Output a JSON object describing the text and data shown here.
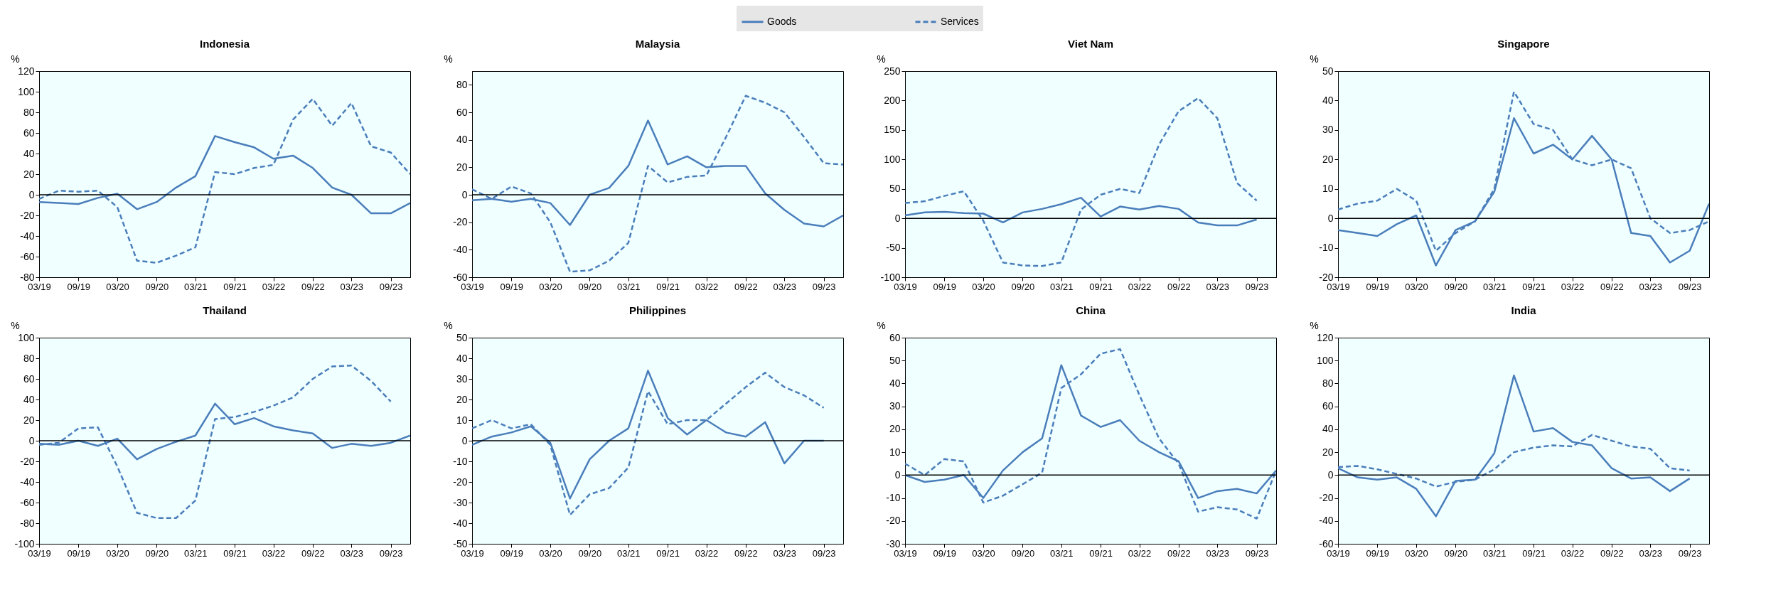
{
  "chart_data": [
    {
      "type": "line",
      "title": "Indonesia",
      "ylabel": "%",
      "legend": "top",
      "x": [
        "2019-03",
        "2019-06",
        "2019-09",
        "2019-12",
        "2020-03",
        "2020-06",
        "2020-09",
        "2020-12",
        "2021-03",
        "2021-06",
        "2021-09",
        "2021-12",
        "2022-03",
        "2022-06",
        "2022-09",
        "2022-12",
        "2023-03",
        "2023-06",
        "2023-09",
        "2023-12"
      ],
      "xlim": [
        "2019-03",
        "2023-12"
      ],
      "xticks": [
        {
          "value": "2019-03",
          "label": "03/19"
        },
        {
          "value": "2019-09",
          "label": "09/19"
        },
        {
          "value": "2020-03",
          "label": "03/20"
        },
        {
          "value": "2020-09",
          "label": "09/20"
        },
        {
          "value": "2021-03",
          "label": "03/21"
        },
        {
          "value": "2021-09",
          "label": "09/21"
        },
        {
          "value": "2022-03",
          "label": "03/22"
        },
        {
          "value": "2022-09",
          "label": "09/22"
        },
        {
          "value": "2023-03",
          "label": "03/23"
        },
        {
          "value": "2023-09",
          "label": "09/23"
        }
      ],
      "ylim": [
        -80,
        120
      ],
      "yticks": [
        -80,
        -60,
        -40,
        -20,
        0,
        20,
        40,
        60,
        80,
        100,
        120
      ],
      "ref_lines": [
        {
          "axis": "y",
          "value": 0,
          "color": "#000000"
        }
      ],
      "series": [
        {
          "name": "Goods",
          "color": "#4a7ebb",
          "line_style": "solid",
          "values": [
            -7,
            -8,
            -9,
            -3,
            1,
            -14,
            -7,
            7,
            18,
            57,
            51,
            46,
            35,
            38,
            26,
            7,
            0,
            -18,
            -18,
            -8
          ]
        },
        {
          "name": "Services",
          "color": "#4a7ebb",
          "line_style": "dashed",
          "values": [
            -4,
            4,
            3,
            4,
            -12,
            -64,
            -66,
            -59,
            -51,
            22,
            20,
            26,
            29,
            73,
            93,
            67,
            89,
            47,
            41,
            20
          ]
        }
      ]
    },
    {
      "type": "line",
      "title": "Malaysia",
      "ylabel": "%",
      "x": [
        "2019-03",
        "2019-06",
        "2019-09",
        "2019-12",
        "2020-03",
        "2020-06",
        "2020-09",
        "2020-12",
        "2021-03",
        "2021-06",
        "2021-09",
        "2021-12",
        "2022-03",
        "2022-06",
        "2022-09",
        "2022-12",
        "2023-03",
        "2023-06",
        "2023-09",
        "2023-12"
      ],
      "xlim": [
        "2019-03",
        "2023-12"
      ],
      "xticks": [
        {
          "value": "2019-03",
          "label": "03/19"
        },
        {
          "value": "2019-09",
          "label": "09/19"
        },
        {
          "value": "2020-03",
          "label": "03/20"
        },
        {
          "value": "2020-09",
          "label": "09/20"
        },
        {
          "value": "2021-03",
          "label": "03/21"
        },
        {
          "value": "2021-09",
          "label": "09/21"
        },
        {
          "value": "2022-03",
          "label": "03/22"
        },
        {
          "value": "2022-09",
          "label": "09/22"
        },
        {
          "value": "2023-03",
          "label": "03/23"
        },
        {
          "value": "2023-09",
          "label": "09/23"
        }
      ],
      "ylim": [
        -60,
        90
      ],
      "yticks": [
        -60,
        -40,
        -20,
        0,
        20,
        40,
        60,
        80
      ],
      "ref_lines": [
        {
          "axis": "y",
          "value": 0,
          "color": "#000000"
        }
      ],
      "series": [
        {
          "name": "Goods",
          "color": "#4a7ebb",
          "line_style": "solid",
          "values": [
            -4,
            -3,
            -5,
            -3,
            -6,
            -22,
            0,
            5,
            21,
            54,
            22,
            28,
            20,
            21,
            21,
            1,
            -11,
            -21,
            -23,
            -15
          ]
        },
        {
          "name": "Services",
          "color": "#4a7ebb",
          "line_style": "dashed",
          "values": [
            4,
            -3,
            6,
            1,
            -20,
            -56,
            -55,
            -48,
            -35,
            21,
            9,
            13,
            14,
            42,
            72,
            67,
            60,
            42,
            23,
            22
          ]
        }
      ]
    },
    {
      "type": "line",
      "title": "Viet Nam",
      "ylabel": "%",
      "x": [
        "2019-03",
        "2019-06",
        "2019-09",
        "2019-12",
        "2020-03",
        "2020-06",
        "2020-09",
        "2020-12",
        "2021-03",
        "2021-06",
        "2021-09",
        "2021-12",
        "2022-03",
        "2022-06",
        "2022-09",
        "2022-12",
        "2023-03",
        "2023-06",
        "2023-09"
      ],
      "xlim": [
        "2019-03",
        "2023-12"
      ],
      "xticks": [
        {
          "value": "2019-03",
          "label": "03/19"
        },
        {
          "value": "2019-09",
          "label": "09/19"
        },
        {
          "value": "2020-03",
          "label": "03/20"
        },
        {
          "value": "2020-09",
          "label": "09/20"
        },
        {
          "value": "2021-03",
          "label": "03/21"
        },
        {
          "value": "2021-09",
          "label": "09/21"
        },
        {
          "value": "2022-03",
          "label": "03/22"
        },
        {
          "value": "2022-09",
          "label": "09/22"
        },
        {
          "value": "2023-03",
          "label": "03/23"
        },
        {
          "value": "2023-09",
          "label": "09/23"
        }
      ],
      "ylim": [
        -100,
        250
      ],
      "yticks": [
        -100,
        -50,
        0,
        50,
        100,
        150,
        200,
        250
      ],
      "ref_lines": [
        {
          "axis": "y",
          "value": 0,
          "color": "#000000"
        }
      ],
      "series": [
        {
          "name": "Goods",
          "color": "#4a7ebb",
          "line_style": "solid",
          "values": [
            5,
            10,
            11,
            9,
            8,
            -7,
            10,
            16,
            24,
            35,
            3,
            20,
            15,
            21,
            16,
            -7,
            -12,
            -12,
            -2
          ]
        },
        {
          "name": "Services",
          "color": "#4a7ebb",
          "line_style": "dashed",
          "values": [
            26,
            29,
            38,
            46,
            -4,
            -75,
            -80,
            -81,
            -75,
            15,
            40,
            50,
            43,
            125,
            182,
            204,
            170,
            60,
            30
          ]
        }
      ]
    },
    {
      "type": "line",
      "title": "Singapore",
      "ylabel": "%",
      "x": [
        "2019-03",
        "2019-06",
        "2019-09",
        "2019-12",
        "2020-03",
        "2020-06",
        "2020-09",
        "2020-12",
        "2021-03",
        "2021-06",
        "2021-09",
        "2021-12",
        "2022-03",
        "2022-06",
        "2022-09",
        "2022-12",
        "2023-03",
        "2023-06",
        "2023-09",
        "2023-12"
      ],
      "xlim": [
        "2019-03",
        "2023-12"
      ],
      "xticks": [
        {
          "value": "2019-03",
          "label": "03/19"
        },
        {
          "value": "2019-09",
          "label": "09/19"
        },
        {
          "value": "2020-03",
          "label": "03/20"
        },
        {
          "value": "2020-09",
          "label": "09/20"
        },
        {
          "value": "2021-03",
          "label": "03/21"
        },
        {
          "value": "2021-09",
          "label": "09/21"
        },
        {
          "value": "2022-03",
          "label": "03/22"
        },
        {
          "value": "2022-09",
          "label": "09/22"
        },
        {
          "value": "2023-03",
          "label": "03/23"
        },
        {
          "value": "2023-09",
          "label": "09/23"
        }
      ],
      "ylim": [
        -20,
        50
      ],
      "yticks": [
        -20,
        -10,
        0,
        10,
        20,
        30,
        40,
        50
      ],
      "ref_lines": [
        {
          "axis": "y",
          "value": 0,
          "color": "#000000"
        }
      ],
      "series": [
        {
          "name": "Goods",
          "color": "#4a7ebb",
          "line_style": "solid",
          "values": [
            -4,
            -5,
            -6,
            -2,
            1,
            -16,
            -4,
            -1,
            9,
            34,
            22,
            25,
            20,
            28,
            20,
            -5,
            -6,
            -15,
            -11,
            5
          ]
        },
        {
          "name": "Services",
          "color": "#4a7ebb",
          "line_style": "dashed",
          "values": [
            3,
            5,
            6,
            10,
            6,
            -11,
            -5,
            -1,
            10,
            43,
            32,
            30,
            20,
            18,
            20,
            17,
            0,
            -5,
            -4,
            -1
          ]
        }
      ]
    },
    {
      "type": "line",
      "title": "Thailand",
      "ylabel": "%",
      "x": [
        "2019-03",
        "2019-06",
        "2019-09",
        "2019-12",
        "2020-03",
        "2020-06",
        "2020-09",
        "2020-12",
        "2021-03",
        "2021-06",
        "2021-09",
        "2021-12",
        "2022-03",
        "2022-06",
        "2022-09",
        "2022-12",
        "2023-03",
        "2023-06",
        "2023-09",
        "2023-12"
      ],
      "xlim": [
        "2019-03",
        "2023-12"
      ],
      "xticks": [
        {
          "value": "2019-03",
          "label": "03/19"
        },
        {
          "value": "2019-09",
          "label": "09/19"
        },
        {
          "value": "2020-03",
          "label": "03/20"
        },
        {
          "value": "2020-09",
          "label": "09/20"
        },
        {
          "value": "2021-03",
          "label": "03/21"
        },
        {
          "value": "2021-09",
          "label": "09/21"
        },
        {
          "value": "2022-03",
          "label": "03/22"
        },
        {
          "value": "2022-09",
          "label": "09/22"
        },
        {
          "value": "2023-03",
          "label": "03/23"
        },
        {
          "value": "2023-09",
          "label": "09/23"
        }
      ],
      "ylim": [
        -100,
        100
      ],
      "yticks": [
        -100,
        -80,
        -60,
        -40,
        -20,
        0,
        20,
        40,
        60,
        80,
        100
      ],
      "ref_lines": [
        {
          "axis": "y",
          "value": 0,
          "color": "#000000"
        }
      ],
      "series": [
        {
          "name": "Goods",
          "color": "#4a7ebb",
          "line_style": "solid",
          "values": [
            -3,
            -4,
            0,
            -5,
            2,
            -18,
            -8,
            -1,
            5,
            36,
            16,
            22,
            14,
            10,
            7,
            -7,
            -3,
            -5,
            -2,
            5
          ]
        },
        {
          "name": "Services",
          "color": "#4a7ebb",
          "line_style": "dashed",
          "values": [
            -4,
            -2,
            12,
            13,
            -25,
            -70,
            -75,
            -75,
            -58,
            21,
            23,
            28,
            34,
            42,
            60,
            72,
            73,
            58,
            38,
            null
          ]
        }
      ]
    },
    {
      "type": "line",
      "title": "Philippines",
      "ylabel": "%",
      "x": [
        "2019-03",
        "2019-06",
        "2019-09",
        "2019-12",
        "2020-03",
        "2020-06",
        "2020-09",
        "2020-12",
        "2021-03",
        "2021-06",
        "2021-09",
        "2021-12",
        "2022-03",
        "2022-06",
        "2022-09",
        "2022-12",
        "2023-03",
        "2023-06",
        "2023-09"
      ],
      "xlim": [
        "2019-03",
        "2023-12"
      ],
      "xticks": [
        {
          "value": "2019-03",
          "label": "03/19"
        },
        {
          "value": "2019-09",
          "label": "09/19"
        },
        {
          "value": "2020-03",
          "label": "03/20"
        },
        {
          "value": "2020-09",
          "label": "09/20"
        },
        {
          "value": "2021-03",
          "label": "03/21"
        },
        {
          "value": "2021-09",
          "label": "09/21"
        },
        {
          "value": "2022-03",
          "label": "03/22"
        },
        {
          "value": "2022-09",
          "label": "09/22"
        },
        {
          "value": "2023-03",
          "label": "03/23"
        },
        {
          "value": "2023-09",
          "label": "09/23"
        }
      ],
      "ylim": [
        -50,
        50
      ],
      "yticks": [
        -50,
        -40,
        -30,
        -20,
        -10,
        0,
        10,
        20,
        30,
        40,
        50
      ],
      "ref_lines": [
        {
          "axis": "y",
          "value": 0,
          "color": "#000000"
        }
      ],
      "series": [
        {
          "name": "Goods",
          "color": "#4a7ebb",
          "line_style": "solid",
          "values": [
            -2,
            2,
            4,
            7,
            -1,
            -28,
            -9,
            0,
            6,
            34,
            11,
            3,
            10,
            4,
            2,
            9,
            -11,
            0,
            0
          ]
        },
        {
          "name": "Services",
          "color": "#4a7ebb",
          "line_style": "dashed",
          "values": [
            6,
            10,
            6,
            8,
            -2,
            -36,
            -26,
            -23,
            -13,
            24,
            8,
            10,
            10,
            18,
            26,
            33,
            26,
            22,
            16
          ]
        }
      ]
    },
    {
      "type": "line",
      "title": "China",
      "ylabel": "%",
      "x": [
        "2019-03",
        "2019-06",
        "2019-09",
        "2019-12",
        "2020-03",
        "2020-06",
        "2020-09",
        "2020-12",
        "2021-03",
        "2021-06",
        "2021-09",
        "2021-12",
        "2022-03",
        "2022-06",
        "2022-09",
        "2022-12",
        "2023-03",
        "2023-06",
        "2023-09",
        "2023-12"
      ],
      "xlim": [
        "2019-03",
        "2023-12"
      ],
      "xticks": [
        {
          "value": "2019-03",
          "label": "03/19"
        },
        {
          "value": "2019-09",
          "label": "09/19"
        },
        {
          "value": "2020-03",
          "label": "03/20"
        },
        {
          "value": "2020-09",
          "label": "09/20"
        },
        {
          "value": "2021-03",
          "label": "03/21"
        },
        {
          "value": "2021-09",
          "label": "09/21"
        },
        {
          "value": "2022-03",
          "label": "03/22"
        },
        {
          "value": "2022-09",
          "label": "09/22"
        },
        {
          "value": "2023-03",
          "label": "03/23"
        },
        {
          "value": "2023-09",
          "label": "09/23"
        }
      ],
      "ylim": [
        -30,
        60
      ],
      "yticks": [
        -30,
        -20,
        -10,
        0,
        10,
        20,
        30,
        40,
        50,
        60
      ],
      "ref_lines": [
        {
          "axis": "y",
          "value": 0,
          "color": "#000000"
        }
      ],
      "series": [
        {
          "name": "Goods",
          "color": "#4a7ebb",
          "line_style": "solid",
          "values": [
            0,
            -3,
            -2,
            0,
            -10,
            2,
            10,
            16,
            48,
            26,
            21,
            24,
            15,
            10,
            6,
            -10,
            -7,
            -6,
            -8,
            2
          ]
        },
        {
          "name": "Services",
          "color": "#4a7ebb",
          "line_style": "dashed",
          "values": [
            5,
            0,
            7,
            6,
            -12,
            -9,
            -4,
            1,
            38,
            44,
            53,
            55,
            35,
            16,
            5,
            -16,
            -14,
            -15,
            -19,
            2
          ]
        }
      ]
    },
    {
      "type": "line",
      "title": "India",
      "ylabel": "%",
      "x": [
        "2019-03",
        "2019-06",
        "2019-09",
        "2019-12",
        "2020-03",
        "2020-06",
        "2020-09",
        "2020-12",
        "2021-03",
        "2021-06",
        "2021-09",
        "2021-12",
        "2022-03",
        "2022-06",
        "2022-09",
        "2022-12",
        "2023-03",
        "2023-06",
        "2023-09"
      ],
      "xlim": [
        "2019-03",
        "2023-12"
      ],
      "xticks": [
        {
          "value": "2019-03",
          "label": "03/19"
        },
        {
          "value": "2019-09",
          "label": "09/19"
        },
        {
          "value": "2020-03",
          "label": "03/20"
        },
        {
          "value": "2020-09",
          "label": "09/20"
        },
        {
          "value": "2021-03",
          "label": "03/21"
        },
        {
          "value": "2021-09",
          "label": "09/21"
        },
        {
          "value": "2022-03",
          "label": "03/22"
        },
        {
          "value": "2022-09",
          "label": "09/22"
        },
        {
          "value": "2023-03",
          "label": "03/23"
        },
        {
          "value": "2023-09",
          "label": "09/23"
        }
      ],
      "ylim": [
        -60,
        120
      ],
      "yticks": [
        -60,
        -40,
        -20,
        0,
        20,
        40,
        60,
        80,
        100,
        120
      ],
      "ref_lines": [
        {
          "axis": "y",
          "value": 0,
          "color": "#000000"
        }
      ],
      "series": [
        {
          "name": "Goods",
          "color": "#4a7ebb",
          "line_style": "solid",
          "values": [
            6,
            -2,
            -4,
            -2,
            -12,
            -36,
            -5,
            -4,
            19,
            87,
            38,
            41,
            29,
            26,
            6,
            -3,
            -2,
            -14,
            -3
          ]
        },
        {
          "name": "Services",
          "color": "#4a7ebb",
          "line_style": "dashed",
          "values": [
            7,
            8,
            5,
            1,
            -3,
            -10,
            -6,
            -4,
            5,
            20,
            24,
            26,
            25,
            35,
            30,
            25,
            23,
            6,
            4
          ]
        }
      ]
    }
  ]
}
